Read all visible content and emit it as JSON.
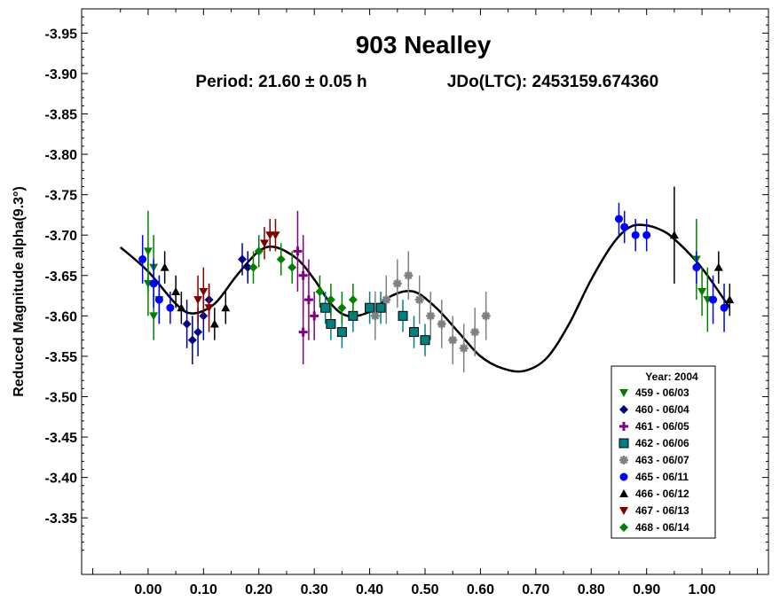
{
  "chart_data": {
    "type": "scatter",
    "title": "903 Nealley",
    "subtitle_period": "Period: 21.60 ± 0.05 h",
    "subtitle_epoch": "JDo(LTC): 2453159.674360",
    "xlabel": "",
    "ylabel": "Reduced Magnitude alpha(9.3°)",
    "xlim": [
      -0.12,
      1.12
    ],
    "ylim": [
      -3.28,
      -3.98
    ],
    "y_inverted": true,
    "grid": false,
    "x_ticks": [
      0.0,
      0.1,
      0.2,
      0.3,
      0.4,
      0.5,
      0.6,
      0.7,
      0.8,
      0.9,
      1.0
    ],
    "x_tick_labels": [
      "0.00",
      "0.10",
      "0.20",
      "0.30",
      "0.40",
      "0.50",
      "0.60",
      "0.70",
      "0.80",
      "0.90",
      "1.00"
    ],
    "y_ticks": [
      -3.35,
      -3.4,
      -3.45,
      -3.5,
      -3.55,
      -3.6,
      -3.65,
      -3.7,
      -3.75,
      -3.8,
      -3.85,
      -3.9,
      -3.95
    ],
    "y_tick_labels": [
      "-3.35",
      "-3.40",
      "-3.45",
      "-3.50",
      "-3.55",
      "-3.60",
      "-3.65",
      "-3.70",
      "-3.75",
      "-3.80",
      "-3.85",
      "-3.90",
      "-3.95"
    ],
    "legend": {
      "placement": "bottom-right",
      "title": "Year: 2004",
      "entries": [
        {
          "label": "459 - 06/03",
          "marker": "triangle-down",
          "color": "#008000"
        },
        {
          "label": "460 - 06/04",
          "marker": "diamond",
          "color": "#000080"
        },
        {
          "label": "461 - 06/05",
          "marker": "plus",
          "color": "#800080"
        },
        {
          "label": "462 - 06/06",
          "marker": "square",
          "color": "#008080"
        },
        {
          "label": "463 - 06/07",
          "marker": "asterisk",
          "color": "#808080"
        },
        {
          "label": "465 - 06/11",
          "marker": "circle",
          "color": "#0000ff"
        },
        {
          "label": "466 - 06/12",
          "marker": "triangle-up",
          "color": "#000000"
        },
        {
          "label": "467 - 06/13",
          "marker": "triangle-down",
          "color": "#800000"
        },
        {
          "label": "468 - 06/14",
          "marker": "diamond",
          "color": "#008000"
        }
      ]
    },
    "fit_curve": [
      [
        -0.05,
        -3.685
      ],
      [
        0.0,
        -3.655
      ],
      [
        0.05,
        -3.615
      ],
      [
        0.08,
        -3.603
      ],
      [
        0.12,
        -3.615
      ],
      [
        0.16,
        -3.65
      ],
      [
        0.2,
        -3.68
      ],
      [
        0.23,
        -3.685
      ],
      [
        0.27,
        -3.67
      ],
      [
        0.3,
        -3.645
      ],
      [
        0.33,
        -3.615
      ],
      [
        0.36,
        -3.6
      ],
      [
        0.4,
        -3.605
      ],
      [
        0.44,
        -3.625
      ],
      [
        0.48,
        -3.63
      ],
      [
        0.52,
        -3.61
      ],
      [
        0.56,
        -3.58
      ],
      [
        0.6,
        -3.55
      ],
      [
        0.64,
        -3.535
      ],
      [
        0.68,
        -3.532
      ],
      [
        0.72,
        -3.548
      ],
      [
        0.76,
        -3.59
      ],
      [
        0.8,
        -3.645
      ],
      [
        0.84,
        -3.69
      ],
      [
        0.87,
        -3.71
      ],
      [
        0.9,
        -3.712
      ],
      [
        0.93,
        -3.705
      ],
      [
        0.95,
        -3.695
      ],
      [
        0.98,
        -3.675
      ],
      [
        1.01,
        -3.65
      ],
      [
        1.05,
        -3.61
      ]
    ],
    "series": [
      {
        "name": "459 - 06/03",
        "marker": "triangle-down",
        "color": "#008000",
        "points": [
          [
            0.0,
            -3.68,
            0.05
          ],
          [
            0.01,
            -3.66,
            0.04
          ],
          [
            0.0,
            -3.64,
            0.04
          ],
          [
            0.02,
            -3.62,
            0.03
          ],
          [
            0.01,
            -3.6,
            0.03
          ],
          [
            0.99,
            -3.67,
            0.05
          ],
          [
            1.0,
            -3.63,
            0.03
          ],
          [
            1.01,
            -3.62,
            0.04
          ]
        ]
      },
      {
        "name": "460 - 06/04",
        "marker": "diamond",
        "color": "#000080",
        "points": [
          [
            0.07,
            -3.59,
            0.03
          ],
          [
            0.08,
            -3.57,
            0.03
          ],
          [
            0.09,
            -3.58,
            0.03
          ],
          [
            0.1,
            -3.6,
            0.03
          ],
          [
            0.11,
            -3.62,
            0.02
          ],
          [
            0.18,
            -3.66,
            0.02
          ],
          [
            0.17,
            -3.67,
            0.02
          ]
        ]
      },
      {
        "name": "461 - 06/05",
        "marker": "plus",
        "color": "#800080",
        "points": [
          [
            0.27,
            -3.68,
            0.05
          ],
          [
            0.28,
            -3.65,
            0.05
          ],
          [
            0.29,
            -3.62,
            0.05
          ],
          [
            0.3,
            -3.6,
            0.03
          ],
          [
            0.28,
            -3.58,
            0.04
          ]
        ]
      },
      {
        "name": "462 - 06/06",
        "marker": "square",
        "color": "#008080",
        "points": [
          [
            0.32,
            -3.61,
            0.02
          ],
          [
            0.33,
            -3.59,
            0.02
          ],
          [
            0.35,
            -3.58,
            0.02
          ],
          [
            0.37,
            -3.6,
            0.02
          ],
          [
            0.4,
            -3.61,
            0.02
          ],
          [
            0.42,
            -3.61,
            0.02
          ],
          [
            0.46,
            -3.6,
            0.02
          ],
          [
            0.48,
            -3.58,
            0.02
          ],
          [
            0.5,
            -3.57,
            0.02
          ]
        ]
      },
      {
        "name": "463 - 06/07",
        "marker": "asterisk",
        "color": "#808080",
        "points": [
          [
            0.41,
            -3.6,
            0.03
          ],
          [
            0.43,
            -3.62,
            0.03
          ],
          [
            0.45,
            -3.64,
            0.03
          ],
          [
            0.47,
            -3.65,
            0.03
          ],
          [
            0.49,
            -3.62,
            0.03
          ],
          [
            0.51,
            -3.6,
            0.03
          ],
          [
            0.53,
            -3.59,
            0.03
          ],
          [
            0.55,
            -3.57,
            0.03
          ],
          [
            0.57,
            -3.56,
            0.03
          ],
          [
            0.59,
            -3.58,
            0.03
          ],
          [
            0.61,
            -3.6,
            0.03
          ]
        ]
      },
      {
        "name": "465 - 06/11",
        "marker": "circle",
        "color": "#0000ff",
        "points": [
          [
            -0.01,
            -3.67,
            0.03
          ],
          [
            0.01,
            -3.64,
            0.03
          ],
          [
            0.02,
            -3.62,
            0.03
          ],
          [
            0.04,
            -3.61,
            0.02
          ],
          [
            0.85,
            -3.72,
            0.02
          ],
          [
            0.86,
            -3.71,
            0.02
          ],
          [
            0.88,
            -3.7,
            0.02
          ],
          [
            0.9,
            -3.7,
            0.02
          ],
          [
            0.99,
            -3.66,
            0.02
          ],
          [
            1.02,
            -3.62,
            0.03
          ],
          [
            1.04,
            -3.61,
            0.03
          ]
        ]
      },
      {
        "name": "466 - 06/12",
        "marker": "triangle-up",
        "color": "#000000",
        "points": [
          [
            0.03,
            -3.66,
            0.02
          ],
          [
            0.05,
            -3.63,
            0.02
          ],
          [
            0.06,
            -3.61,
            0.02
          ],
          [
            0.12,
            -3.59,
            0.02
          ],
          [
            0.14,
            -3.61,
            0.02
          ],
          [
            0.95,
            -3.7,
            0.06
          ],
          [
            1.03,
            -3.66,
            0.02
          ],
          [
            1.05,
            -3.62,
            0.02
          ]
        ]
      },
      {
        "name": "467 - 06/13",
        "marker": "triangle-down",
        "color": "#800000",
        "points": [
          [
            0.09,
            -3.62,
            0.03
          ],
          [
            0.1,
            -3.63,
            0.03
          ],
          [
            0.11,
            -3.61,
            0.03
          ],
          [
            0.21,
            -3.69,
            0.02
          ],
          [
            0.22,
            -3.7,
            0.02
          ],
          [
            0.23,
            -3.7,
            0.02
          ]
        ]
      },
      {
        "name": "468 - 06/14",
        "marker": "diamond",
        "color": "#008000",
        "points": [
          [
            0.19,
            -3.66,
            0.02
          ],
          [
            0.2,
            -3.68,
            0.02
          ],
          [
            0.24,
            -3.67,
            0.02
          ],
          [
            0.26,
            -3.66,
            0.02
          ],
          [
            0.31,
            -3.63,
            0.02
          ],
          [
            0.33,
            -3.62,
            0.02
          ],
          [
            0.35,
            -3.61,
            0.02
          ],
          [
            0.37,
            -3.62,
            0.02
          ]
        ]
      }
    ]
  }
}
